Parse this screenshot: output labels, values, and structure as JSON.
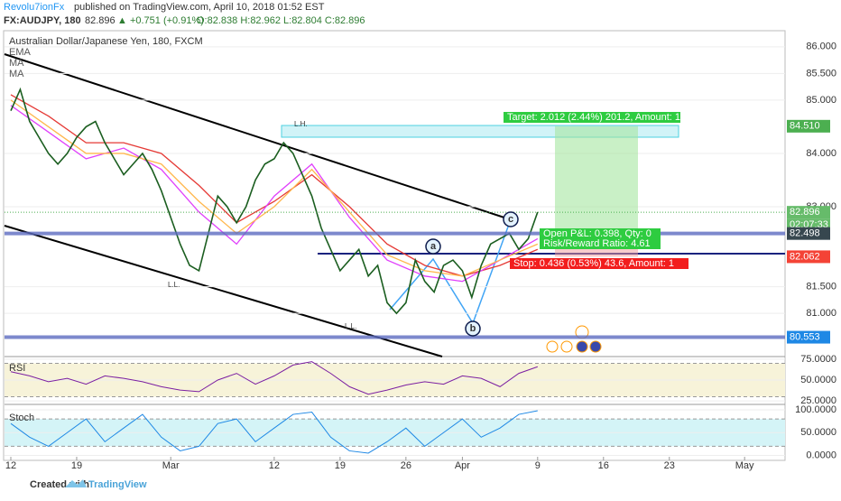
{
  "header": {
    "author": "Revolu7ionFx",
    "published": "published on TradingView.com, April 10, 2018 01:52 EST",
    "symbol": "FX:AUDJPY, 180",
    "last": "82.896",
    "change": "▲ +0.751 (+0.91%)",
    "ohlc": "O:82.838 H:82.962 L:82.804 C:82.896"
  },
  "chart_data": [
    {
      "type": "line",
      "title": "Australian Dollar/Japanese Yen, 180, FXCM",
      "color": "#1b5e20",
      "x": [
        0,
        1,
        2,
        3,
        4,
        5,
        6,
        7,
        8,
        9,
        10,
        11,
        12,
        13,
        14,
        15,
        16,
        17,
        18,
        19,
        20,
        21,
        22,
        23,
        24,
        25,
        26,
        27,
        28,
        29,
        30,
        31,
        32,
        33,
        34,
        35,
        36,
        37,
        38,
        39,
        40,
        41,
        42,
        43,
        44,
        45,
        46,
        47,
        48,
        49,
        50,
        51,
        52,
        53,
        54,
        55,
        56
      ],
      "values": [
        84.8,
        85.2,
        84.6,
        84.3,
        84.0,
        83.8,
        84.0,
        84.3,
        84.5,
        84.6,
        84.2,
        83.9,
        83.6,
        83.8,
        84.0,
        83.7,
        83.3,
        82.8,
        82.3,
        81.9,
        81.8,
        82.5,
        83.2,
        83.0,
        82.7,
        83.0,
        83.5,
        83.8,
        83.9,
        84.2,
        84.0,
        83.6,
        83.2,
        82.6,
        82.2,
        81.8,
        82.0,
        82.2,
        81.7,
        81.9,
        81.2,
        81.0,
        81.2,
        82.0,
        81.6,
        81.4,
        81.9,
        82.0,
        81.8,
        81.3,
        81.9,
        82.3,
        82.4,
        82.5,
        82.2,
        82.4,
        82.9
      ],
      "series": [
        {
          "name": "EMA",
          "color": "#e53935",
          "x": [
            0,
            4,
            8,
            12,
            16,
            20,
            24,
            28,
            32,
            36,
            40,
            44,
            48,
            52,
            56
          ],
          "values": [
            85.1,
            84.7,
            84.2,
            84.2,
            84.0,
            83.4,
            82.7,
            83.1,
            83.6,
            83.0,
            82.3,
            81.9,
            81.7,
            81.9,
            82.2
          ]
        },
        {
          "name": "MA",
          "color": "#e040fb",
          "x": [
            0,
            4,
            8,
            12,
            16,
            20,
            24,
            28,
            32,
            36,
            40,
            44,
            48,
            52,
            56
          ],
          "values": [
            84.9,
            84.4,
            83.9,
            84.1,
            83.7,
            82.9,
            82.3,
            83.2,
            83.8,
            82.8,
            82.0,
            81.7,
            81.6,
            82.0,
            82.4
          ]
        },
        {
          "name": "MA",
          "color": "#ffb74d",
          "x": [
            0,
            4,
            8,
            12,
            16,
            20,
            24,
            28,
            32,
            36,
            40,
            44,
            48,
            52,
            56
          ],
          "values": [
            85.0,
            84.5,
            84.0,
            84.0,
            83.8,
            83.1,
            82.5,
            83.0,
            83.7,
            82.9,
            82.1,
            81.8,
            81.7,
            82.0,
            82.3
          ]
        }
      ],
      "xlim": [
        -0.67,
        82.3
      ],
      "xticks": [
        {
          "value": 0,
          "label": "12"
        },
        {
          "value": 7,
          "label": "19"
        },
        {
          "value": 17,
          "label": "Mar"
        },
        {
          "value": 28,
          "label": "12"
        },
        {
          "value": 35,
          "label": "19"
        },
        {
          "value": 42,
          "label": "26"
        },
        {
          "value": 48,
          "label": "Apr"
        },
        {
          "value": 56,
          "label": "9"
        },
        {
          "value": 63,
          "label": "16"
        },
        {
          "value": 70,
          "label": "23"
        },
        {
          "value": 78,
          "label": "May"
        }
      ],
      "ylim": [
        80.19,
        86.2
      ],
      "yticks": [
        {
          "value": 86,
          "label": "86.000"
        },
        {
          "value": 85.5,
          "label": "85.500"
        },
        {
          "value": 85,
          "label": "85.000"
        },
        {
          "value": 84,
          "label": "84.000"
        },
        {
          "value": 83,
          "label": "83.000"
        },
        {
          "value": 81.5,
          "label": "81.500"
        },
        {
          "value": 81,
          "label": "81.000"
        }
      ],
      "price_labels": [
        {
          "value": 84.51,
          "label": "84.510",
          "color": "#4caf50"
        },
        {
          "value": 82.896,
          "label": "82.896",
          "color": "#66bb6a"
        },
        {
          "value": 82.498,
          "label": "82.498",
          "color": "#37474f"
        },
        {
          "value": 82.062,
          "label": "82.062",
          "color": "#f44336"
        },
        {
          "value": 80.553,
          "label": "80.553",
          "color": "#1e88e5"
        }
      ],
      "countdown": "02:07:33",
      "position": {
        "entry": 82.498,
        "target": 84.51,
        "stop": 82.062
      },
      "annotations": [
        "Target: 2.012 (2.44%) 201.2, Amount: 1",
        "Open P&L: 0.398, Qty: 0",
        "Risk/Reward Ratio: 4.61",
        "Stop: 0.436 (0.53%) 43.6, Amount: 1",
        "L.L.",
        "L.L.",
        "L.H.",
        "a",
        "b",
        "c"
      ]
    },
    {
      "type": "line",
      "title": "RSI",
      "color": "#7b1fa2",
      "x": [
        0,
        2,
        4,
        6,
        8,
        10,
        12,
        14,
        16,
        18,
        20,
        22,
        24,
        26,
        28,
        30,
        32,
        34,
        36,
        38,
        40,
        42,
        44,
        46,
        48,
        50,
        52,
        54,
        56
      ],
      "values": [
        60,
        55,
        48,
        52,
        45,
        55,
        52,
        48,
        42,
        38,
        36,
        50,
        58,
        45,
        55,
        68,
        72,
        58,
        42,
        33,
        38,
        44,
        48,
        45,
        55,
        52,
        42,
        58,
        66
      ],
      "band": [
        30,
        70
      ],
      "band_color": "#f7f3d9",
      "ylim": [
        24,
        76
      ],
      "yticks": [
        {
          "value": 75,
          "label": "75.0000"
        },
        {
          "value": 50,
          "label": "50.0000"
        },
        {
          "value": 25,
          "label": "25.0000"
        }
      ]
    },
    {
      "type": "line",
      "title": "Stoch",
      "color": "#1e88e5",
      "x": [
        0,
        2,
        4,
        6,
        8,
        10,
        12,
        14,
        16,
        18,
        20,
        22,
        24,
        26,
        28,
        30,
        32,
        34,
        36,
        38,
        40,
        42,
        44,
        46,
        48,
        50,
        52,
        54,
        56
      ],
      "values": [
        70,
        40,
        20,
        50,
        80,
        30,
        60,
        90,
        40,
        10,
        20,
        70,
        80,
        30,
        60,
        90,
        95,
        40,
        10,
        5,
        30,
        60,
        20,
        50,
        80,
        40,
        60,
        90,
        98
      ],
      "band": [
        20,
        80
      ],
      "band_color": "#d4f4f7",
      "ylim": [
        -3,
        104
      ],
      "yticks": [
        {
          "value": 100,
          "label": "100.0000"
        },
        {
          "value": 50,
          "label": "50.0000"
        },
        {
          "value": 0,
          "label": "0.0000"
        }
      ]
    }
  ],
  "footer": {
    "created": "Created with",
    "brand": "TradingView"
  }
}
